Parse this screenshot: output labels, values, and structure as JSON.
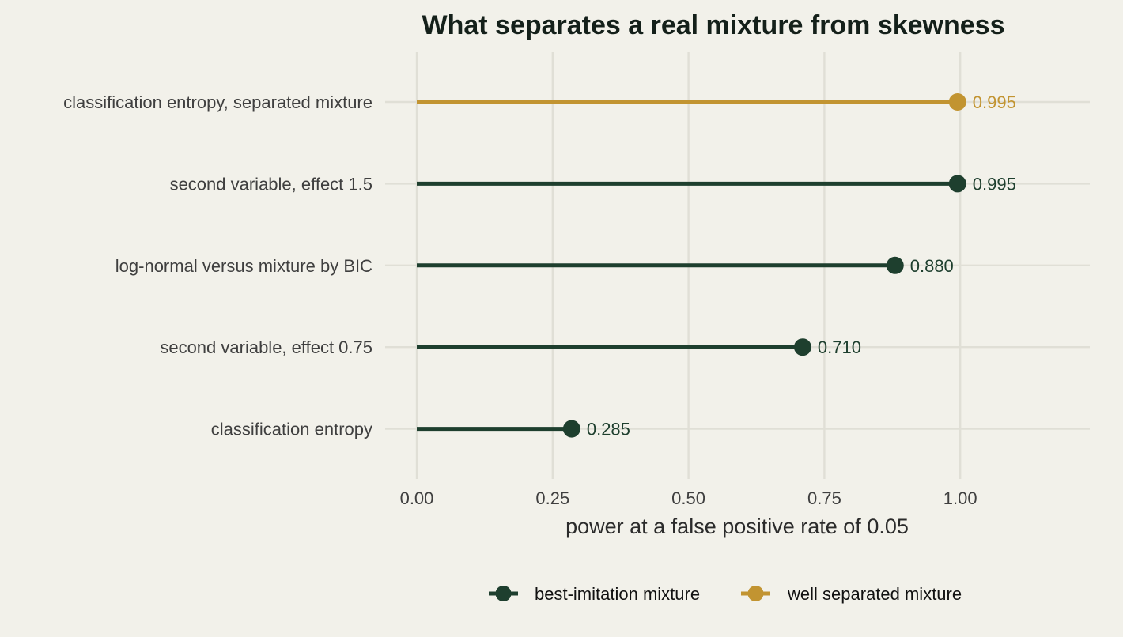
{
  "chart_data": {
    "type": "lollipop",
    "title": "What separates a real mixture from skewness",
    "xlabel": "power at a false positive rate of 0.05",
    "ylabel": "",
    "xlim": [
      0,
      1.2
    ],
    "x_ticks": [
      "0.00",
      "0.25",
      "0.50",
      "0.75",
      "1.00"
    ],
    "grid": true,
    "legend_position": "bottom",
    "series": [
      {
        "name": "best-imitation mixture",
        "color": "#1e3f2e"
      },
      {
        "name": "well separated mixture",
        "color": "#c29431"
      }
    ],
    "points": [
      {
        "category": "classification entropy, separated mixture",
        "value": 0.995,
        "label": "0.995",
        "series": "well separated mixture"
      },
      {
        "category": "second variable, effect 1.5",
        "value": 0.995,
        "label": "0.995",
        "series": "best-imitation mixture"
      },
      {
        "category": "log-normal versus mixture by BIC",
        "value": 0.88,
        "label": "0.880",
        "series": "best-imitation mixture"
      },
      {
        "category": "second variable, effect 0.75",
        "value": 0.71,
        "label": "0.710",
        "series": "best-imitation mixture"
      },
      {
        "category": "classification entropy",
        "value": 0.285,
        "label": "0.285",
        "series": "best-imitation mixture"
      }
    ]
  }
}
